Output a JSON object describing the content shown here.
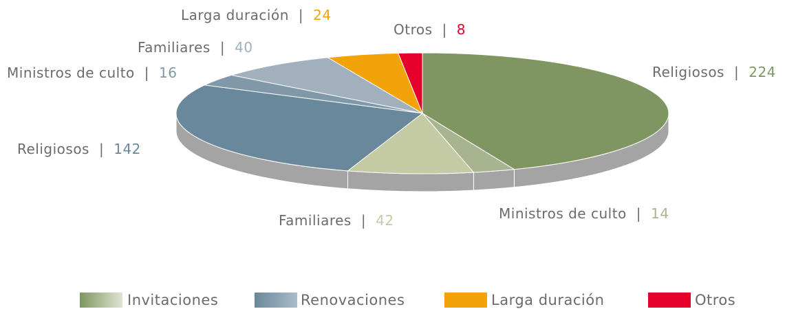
{
  "chart_data": {
    "type": "pie3d",
    "categories": [
      "Religiosos",
      "Ministros de culto",
      "Familiares",
      "Religiosos",
      "Ministros de culto",
      "Familiares",
      "Larga duración",
      "Otros"
    ],
    "values": [
      224,
      14,
      42,
      142,
      16,
      40,
      24,
      8
    ],
    "colors": [
      "#7f9660",
      "#a8b390",
      "#c4caa4",
      "#6a889b",
      "#7f99a8",
      "#a1b0bc",
      "#f2a30a",
      "#e4002b"
    ],
    "separator": "|",
    "legend": [
      {
        "name": "Invitaciones",
        "colors": [
          "#7f9660",
          "#dfe4d3"
        ]
      },
      {
        "name": "Renovaciones",
        "colors": [
          "#6a889b",
          "#a9bccb"
        ]
      },
      {
        "name": "Larga duración",
        "colors": [
          "#f2a30a",
          "#f2a30a"
        ]
      },
      {
        "name": "Otros",
        "colors": [
          "#e4002b",
          "#e4002b"
        ]
      }
    ]
  }
}
